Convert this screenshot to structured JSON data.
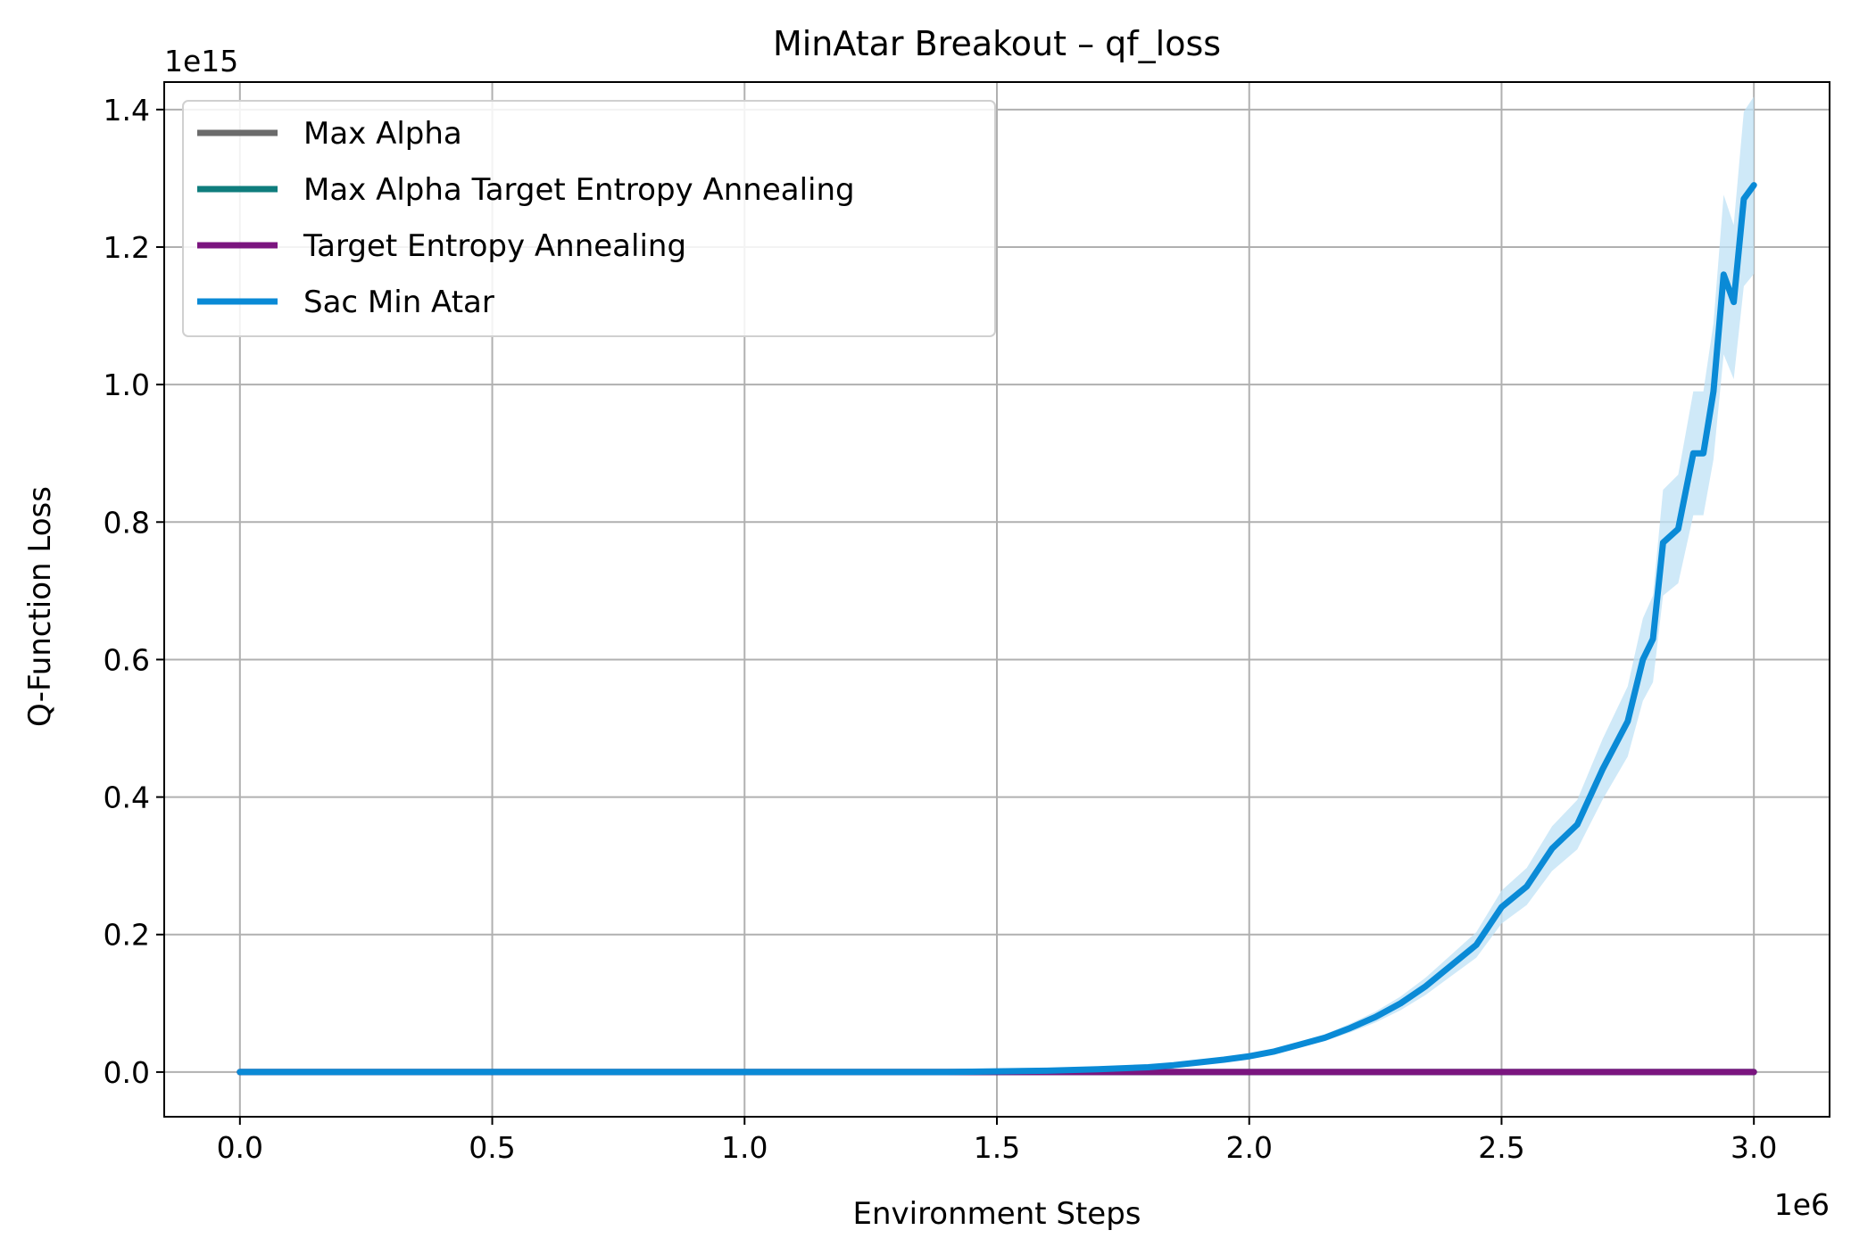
{
  "chart_data": {
    "type": "line",
    "title": "MinAtar Breakout – qf_loss",
    "xlabel": "Environment Steps",
    "ylabel": "Q-Function Loss",
    "x_offset_label": "1e6",
    "y_offset_label": "1e15",
    "x_scale": 1000000,
    "y_scale": 1000000000000000.0,
    "xlim": [
      -0.15,
      3.15
    ],
    "ylim": [
      -0.065,
      1.44
    ],
    "x_ticks": [
      0.0,
      0.5,
      1.0,
      1.5,
      2.0,
      2.5,
      3.0
    ],
    "x_tick_labels": [
      "0.0",
      "0.5",
      "1.0",
      "1.5",
      "2.0",
      "2.5",
      "3.0"
    ],
    "y_ticks": [
      0.0,
      0.2,
      0.4,
      0.6,
      0.8,
      1.0,
      1.2,
      1.4
    ],
    "y_tick_labels": [
      "0.0",
      "0.2",
      "0.4",
      "0.6",
      "0.8",
      "1.0",
      "1.2",
      "1.4"
    ],
    "grid": true,
    "legend_position": "upper-left",
    "series": [
      {
        "name": "Max Alpha",
        "color": "#6b6b6b",
        "x": [
          0.0,
          3.0
        ],
        "y": [
          0.0,
          0.0
        ]
      },
      {
        "name": "Max Alpha Target Entropy Annealing",
        "color": "#0f7d7d",
        "x": [
          0.0,
          3.0
        ],
        "y": [
          0.0,
          0.0
        ]
      },
      {
        "name": "Target Entropy Annealing",
        "color": "#7b157f",
        "x": [
          0.0,
          3.0
        ],
        "y": [
          0.0,
          0.0
        ]
      },
      {
        "name": "Sac Min Atar",
        "color": "#0a8ad6",
        "band_color": "#bfe1f5",
        "x": [
          0.0,
          1.4,
          1.5,
          1.6,
          1.7,
          1.8,
          1.85,
          1.9,
          1.95,
          2.0,
          2.05,
          2.1,
          2.15,
          2.2,
          2.25,
          2.3,
          2.35,
          2.4,
          2.45,
          2.5,
          2.55,
          2.6,
          2.65,
          2.7,
          2.75,
          2.78,
          2.8,
          2.82,
          2.85,
          2.88,
          2.9,
          2.92,
          2.94,
          2.96,
          2.98,
          3.0
        ],
        "y": [
          0.0,
          0.0,
          0.001,
          0.002,
          0.004,
          0.007,
          0.01,
          0.014,
          0.018,
          0.023,
          0.03,
          0.04,
          0.05,
          0.064,
          0.08,
          0.1,
          0.125,
          0.155,
          0.185,
          0.24,
          0.27,
          0.325,
          0.36,
          0.44,
          0.51,
          0.6,
          0.63,
          0.77,
          0.79,
          0.9,
          0.9,
          0.99,
          1.16,
          1.12,
          1.27,
          1.29
        ],
        "lower": [
          0.0,
          0.0,
          0.0009,
          0.0018,
          0.0036,
          0.0063,
          0.009,
          0.0126,
          0.0162,
          0.0207,
          0.027,
          0.036,
          0.045,
          0.0576,
          0.072,
          0.09,
          0.1125,
          0.1395,
          0.1665,
          0.216,
          0.243,
          0.2925,
          0.324,
          0.396,
          0.459,
          0.54,
          0.567,
          0.693,
          0.711,
          0.81,
          0.81,
          0.891,
          1.044,
          1.008,
          1.143,
          1.161
        ],
        "upper": [
          0.0,
          0.0,
          0.0011,
          0.0022,
          0.0044,
          0.0077,
          0.011,
          0.0154,
          0.0198,
          0.0253,
          0.033,
          0.044,
          0.055,
          0.0704,
          0.088,
          0.11,
          0.1375,
          0.1705,
          0.2035,
          0.264,
          0.297,
          0.3575,
          0.396,
          0.484,
          0.561,
          0.66,
          0.693,
          0.847,
          0.869,
          0.99,
          0.99,
          1.089,
          1.276,
          1.232,
          1.397,
          1.419
        ]
      }
    ]
  }
}
